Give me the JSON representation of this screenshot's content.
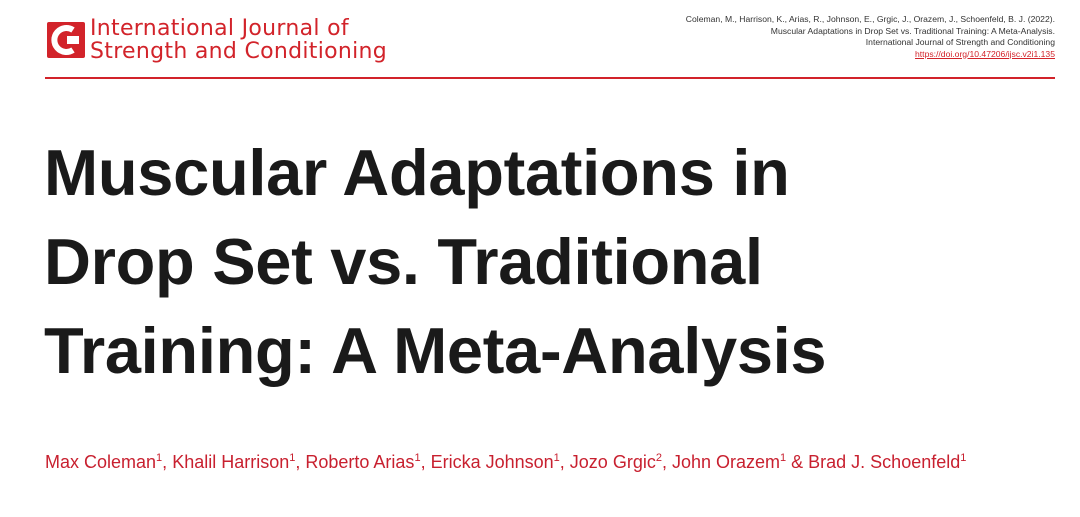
{
  "journal": [
    "International Journal of",
    "Strength and Conditioning"
  ],
  "citation": {
    "lines": [
      "Coleman, M., Harrison, K., Arias, R., Johnson, E., Grgic, J., Orazem, J., Schoenfeld, B. J. (2022).",
      "Muscular Adaptations in Drop Set vs. Traditional Training: A Meta-Analysis.",
      "International Journal of Strength and Conditioning"
    ],
    "doi": "https://doi.org/10.47206/ijsc.v2i1.135"
  },
  "title": [
    "Muscular Adaptations in",
    "Drop Set vs. Traditional",
    "Training: A Meta-Analysis"
  ],
  "authors": [
    {
      "name": "Max Coleman",
      "affiliation": "1"
    },
    {
      "name": "Khalil Harrison",
      "affiliation": "1"
    },
    {
      "name": "Roberto Arias",
      "affiliation": "1"
    },
    {
      "name": "Ericka Johnson",
      "affiliation": "1"
    },
    {
      "name": "Jozo Grgic",
      "affiliation": "2"
    },
    {
      "name": "John Orazem",
      "affiliation": "1"
    },
    {
      "name": "Brad J. Schoenfeld",
      "affiliation": "1"
    }
  ],
  "separators": [
    ", ",
    ", ",
    ", ",
    ", ",
    ", ",
    " & "
  ]
}
